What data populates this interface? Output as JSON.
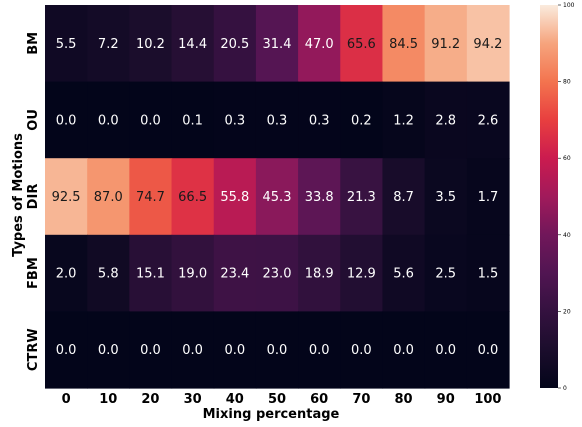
{
  "chart_data": {
    "type": "heatmap",
    "title": "",
    "xlabel": "Mixing percentage",
    "ylabel": "Types of Motions",
    "x_categories": [
      "0",
      "10",
      "20",
      "30",
      "40",
      "50",
      "60",
      "70",
      "80",
      "90",
      "100"
    ],
    "y_categories": [
      "BM",
      "OU",
      "DIR",
      "FBM",
      "CTRW"
    ],
    "values": [
      [
        5.5,
        7.2,
        10.2,
        14.4,
        20.5,
        31.4,
        47.0,
        65.6,
        84.5,
        91.2,
        94.2
      ],
      [
        0.0,
        0.0,
        0.0,
        0.1,
        0.3,
        0.3,
        0.3,
        0.2,
        1.2,
        2.8,
        2.6
      ],
      [
        92.5,
        87.0,
        74.7,
        66.5,
        55.8,
        45.3,
        33.8,
        21.3,
        8.7,
        3.5,
        1.7
      ],
      [
        2.0,
        5.8,
        15.1,
        19.0,
        23.4,
        23.0,
        18.9,
        12.9,
        5.6,
        2.5,
        1.5
      ],
      [
        0.0,
        0.0,
        0.0,
        0.0,
        0.0,
        0.0,
        0.0,
        0.0,
        0.0,
        0.0,
        0.0
      ]
    ],
    "value_labels": [
      [
        "5.5",
        "7.2",
        "10.2",
        "14.4",
        "20.5",
        "31.4",
        "47.0",
        "65.6",
        "84.5",
        "91.2",
        "94.2"
      ],
      [
        "0.0",
        "0.0",
        "0.0",
        "0.1",
        "0.3",
        "0.3",
        "0.3",
        "0.2",
        "1.2",
        "2.8",
        "2.6"
      ],
      [
        "92.5",
        "87.0",
        "74.7",
        "66.5",
        "55.8",
        "45.3",
        "33.8",
        "21.3",
        "8.7",
        "3.5",
        "1.7"
      ],
      [
        "2.0",
        "5.8",
        "15.1",
        "19.0",
        "23.4",
        "23.0",
        "18.9",
        "12.9",
        "5.6",
        "2.5",
        "1.5"
      ],
      [
        "0.0",
        "0.0",
        "0.0",
        "0.0",
        "0.0",
        "0.0",
        "0.0",
        "0.0",
        "0.0",
        "0.0",
        "0.0"
      ]
    ],
    "colorbar": {
      "min": 0,
      "max": 100,
      "ticks": [
        0,
        20,
        40,
        60,
        80,
        100
      ],
      "colormap": "rocket"
    },
    "grid": false,
    "legend": "colorbar-right"
  }
}
